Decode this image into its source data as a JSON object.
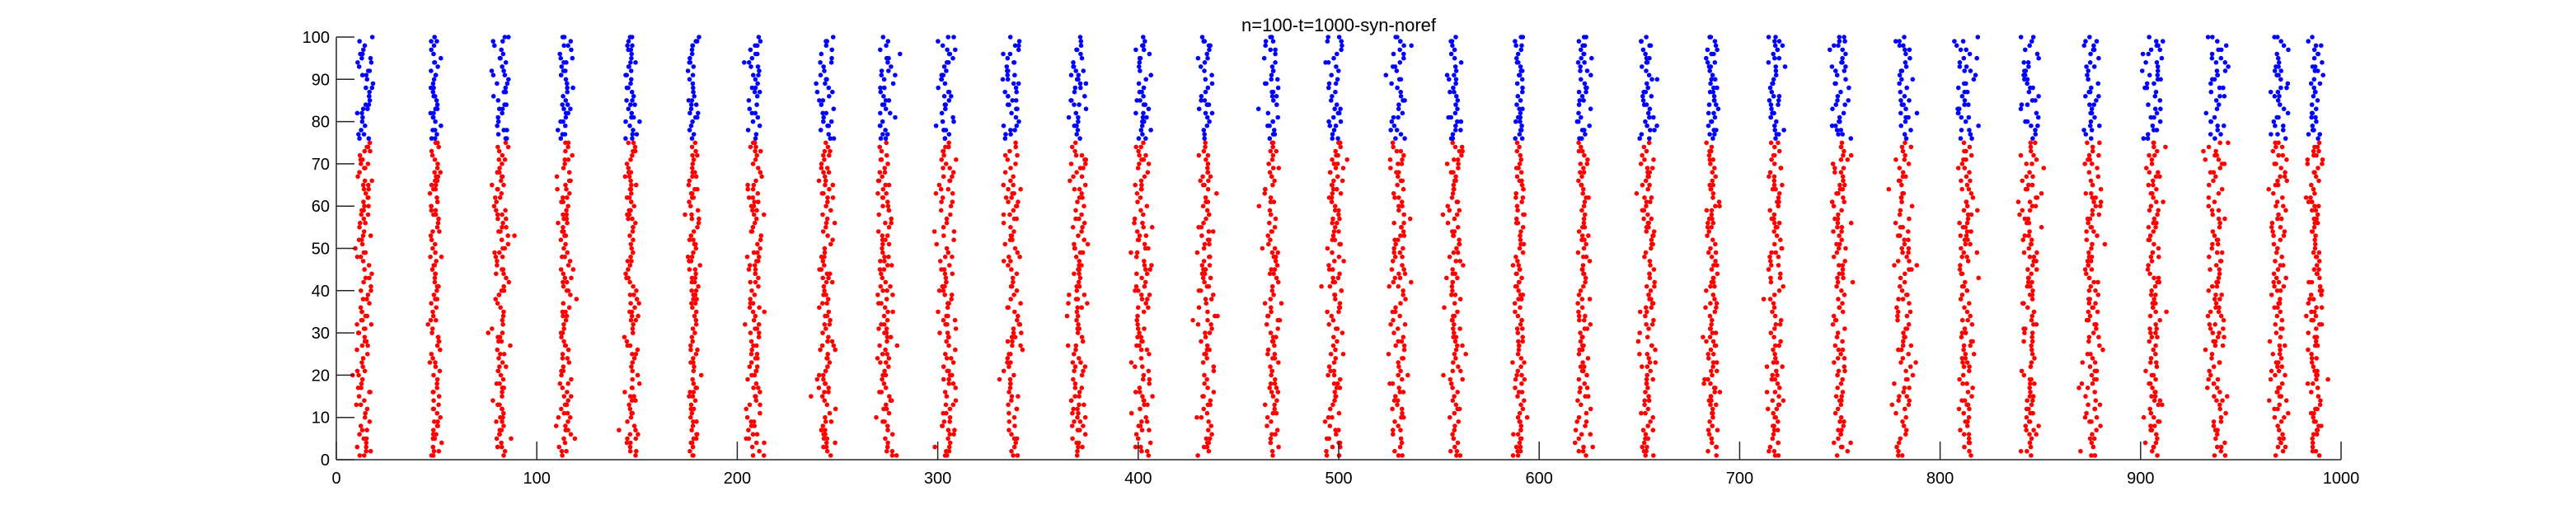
{
  "chart_data": {
    "type": "scatter",
    "title": "n=100-t=1000-syn-noref",
    "xlabel": "",
    "ylabel": "",
    "xlim": [
      0,
      1000
    ],
    "ylim": [
      0,
      100
    ],
    "x_ticks": [
      0,
      100,
      200,
      300,
      400,
      500,
      600,
      700,
      800,
      900,
      1000
    ],
    "y_ticks": [
      0,
      10,
      20,
      30,
      40,
      50,
      60,
      70,
      80,
      90,
      100
    ],
    "grid": false,
    "legend": "none",
    "burst_times": [
      14,
      49,
      82,
      114,
      147,
      178,
      209,
      244,
      274,
      305,
      337,
      370,
      402,
      434,
      467,
      498,
      530,
      558,
      590,
      622,
      654,
      686,
      718,
      750,
      782,
      813,
      845,
      876,
      906,
      938,
      969,
      987
    ],
    "series": [
      {
        "neuron_range": [
          1,
          75
        ],
        "color": "#ff0000",
        "spike_times_mean": [
          14,
          49,
          82,
          114,
          147,
          178,
          209,
          244,
          274,
          305,
          337,
          370,
          402,
          434,
          467,
          498,
          530,
          558,
          590,
          622,
          654,
          686,
          718,
          750,
          782,
          813,
          845,
          876,
          906,
          938,
          969,
          987
        ],
        "spike_spread": [
          5,
          3,
          4,
          4,
          4,
          3,
          4,
          4,
          5,
          5,
          5,
          5,
          5,
          5,
          4,
          5,
          5,
          5,
          3,
          4,
          4,
          4,
          4,
          5,
          5,
          5,
          5,
          5,
          4,
          5,
          5,
          4
        ]
      },
      {
        "neuron_range": [
          76,
          100
        ],
        "color": "#0000ff",
        "spike_times_mean": [
          14,
          49,
          82,
          114,
          147,
          178,
          209,
          244,
          274,
          305,
          337,
          370,
          402,
          434,
          467,
          498,
          530,
          558,
          590,
          622,
          654,
          686,
          718,
          750,
          782,
          813,
          845,
          876,
          906,
          938,
          969,
          987
        ],
        "spike_spread": [
          4,
          3,
          5,
          4,
          4,
          3,
          4,
          5,
          5,
          5,
          5,
          5,
          4,
          4,
          5,
          5,
          5,
          4,
          3,
          4,
          4,
          4,
          4,
          6,
          5,
          6,
          5,
          6,
          5,
          5,
          5,
          4
        ]
      }
    ]
  }
}
